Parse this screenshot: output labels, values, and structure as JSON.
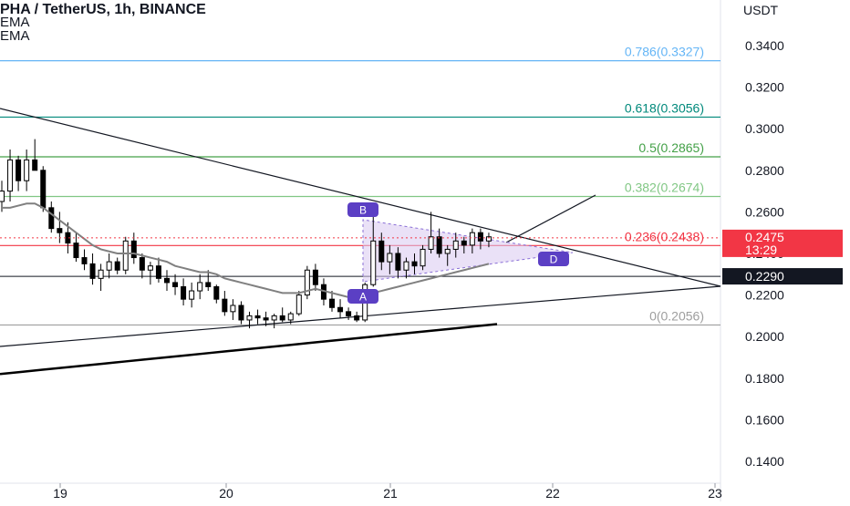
{
  "header": {
    "title": "PHA / TetherUS, 1h, BINANCE",
    "indicator_1": "EMA",
    "indicator_2": "EMA"
  },
  "price_axis": {
    "currency": "USDT",
    "ticks": [
      "0.3400",
      "0.3200",
      "0.3000",
      "0.2800",
      "0.2600",
      "0.2400",
      "0.2200",
      "0.2000",
      "0.1800",
      "0.1600",
      "0.1400"
    ]
  },
  "time_axis": {
    "ticks": [
      "19",
      "20",
      "21",
      "22",
      "23"
    ]
  },
  "fib_levels": [
    {
      "label": "0.786(0.3327)",
      "price": 0.3327,
      "color": "#64b5f6"
    },
    {
      "label": "0.618(0.3056)",
      "price": 0.3056,
      "color": "#00897b"
    },
    {
      "label": "0.5(0.2865)",
      "price": 0.2865,
      "color": "#43a047"
    },
    {
      "label": "0.382(0.2674)",
      "price": 0.2674,
      "color": "#81c784"
    },
    {
      "label": "0.236(0.2438)",
      "price": 0.2438,
      "color": "#f23645"
    },
    {
      "label": "0(0.2056)",
      "price": 0.2056,
      "color": "#9e9e9e"
    }
  ],
  "current_price": {
    "value": "0.2475",
    "countdown": "13:29",
    "color": "#f23645"
  },
  "support_price": {
    "value": "0.2290",
    "color": "#131722"
  },
  "pattern_points": {
    "A": "A",
    "B": "B",
    "D": "D"
  },
  "colors": {
    "pattern_fill": "#d8c8f0",
    "pattern_label": "#5b3fc4",
    "ema_fast": "#808080",
    "ema_slow": "#000000"
  },
  "chart_data": {
    "type": "candlestick",
    "title": "PHA / TetherUS, 1h, BINANCE",
    "ylim": [
      0.13,
      0.355
    ],
    "x_ticks": [
      "19",
      "20",
      "21",
      "22",
      "23"
    ],
    "candles": [
      [
        0.265,
        0.275,
        0.26,
        0.27
      ],
      [
        0.27,
        0.29,
        0.265,
        0.285
      ],
      [
        0.285,
        0.287,
        0.27,
        0.275
      ],
      [
        0.275,
        0.29,
        0.27,
        0.285
      ],
      [
        0.285,
        0.295,
        0.28,
        0.28
      ],
      [
        0.28,
        0.282,
        0.26,
        0.262
      ],
      [
        0.262,
        0.265,
        0.25,
        0.252
      ],
      [
        0.252,
        0.26,
        0.245,
        0.25
      ],
      [
        0.25,
        0.255,
        0.24,
        0.245
      ],
      [
        0.245,
        0.25,
        0.236,
        0.238
      ],
      [
        0.238,
        0.242,
        0.232,
        0.235
      ],
      [
        0.235,
        0.24,
        0.225,
        0.228
      ],
      [
        0.228,
        0.235,
        0.222,
        0.232
      ],
      [
        0.232,
        0.24,
        0.228,
        0.236
      ],
      [
        0.236,
        0.238,
        0.23,
        0.232
      ],
      [
        0.232,
        0.248,
        0.23,
        0.246
      ],
      [
        0.246,
        0.25,
        0.235,
        0.238
      ],
      [
        0.238,
        0.24,
        0.228,
        0.232
      ],
      [
        0.232,
        0.236,
        0.225,
        0.234
      ],
      [
        0.234,
        0.238,
        0.226,
        0.228
      ],
      [
        0.228,
        0.232,
        0.222,
        0.226
      ],
      [
        0.226,
        0.23,
        0.22,
        0.224
      ],
      [
        0.224,
        0.228,
        0.215,
        0.218
      ],
      [
        0.218,
        0.226,
        0.214,
        0.222
      ],
      [
        0.222,
        0.23,
        0.218,
        0.226
      ],
      [
        0.226,
        0.232,
        0.222,
        0.224
      ],
      [
        0.224,
        0.225,
        0.216,
        0.218
      ],
      [
        0.218,
        0.222,
        0.21,
        0.212
      ],
      [
        0.212,
        0.218,
        0.208,
        0.215
      ],
      [
        0.215,
        0.217,
        0.206,
        0.208
      ],
      [
        0.208,
        0.212,
        0.204,
        0.21
      ],
      [
        0.21,
        0.213,
        0.206,
        0.209
      ],
      [
        0.209,
        0.212,
        0.205,
        0.208
      ],
      [
        0.208,
        0.211,
        0.204,
        0.21
      ],
      [
        0.21,
        0.214,
        0.207,
        0.208
      ],
      [
        0.208,
        0.212,
        0.206,
        0.211
      ],
      [
        0.211,
        0.222,
        0.21,
        0.22
      ],
      [
        0.22,
        0.234,
        0.218,
        0.232
      ],
      [
        0.232,
        0.235,
        0.222,
        0.225
      ],
      [
        0.225,
        0.228,
        0.215,
        0.218
      ],
      [
        0.218,
        0.222,
        0.212,
        0.214
      ],
      [
        0.214,
        0.218,
        0.209,
        0.212
      ],
      [
        0.212,
        0.214,
        0.208,
        0.21
      ],
      [
        0.21,
        0.212,
        0.207,
        0.208
      ],
      [
        0.208,
        0.226,
        0.207,
        0.225
      ],
      [
        0.225,
        0.258,
        0.224,
        0.246
      ],
      [
        0.246,
        0.25,
        0.232,
        0.236
      ],
      [
        0.236,
        0.244,
        0.23,
        0.24
      ],
      [
        0.24,
        0.243,
        0.228,
        0.232
      ],
      [
        0.232,
        0.238,
        0.228,
        0.236
      ],
      [
        0.236,
        0.24,
        0.23,
        0.234
      ],
      [
        0.234,
        0.244,
        0.232,
        0.242
      ],
      [
        0.242,
        0.26,
        0.24,
        0.248
      ],
      [
        0.248,
        0.252,
        0.238,
        0.24
      ],
      [
        0.24,
        0.244,
        0.234,
        0.242
      ],
      [
        0.242,
        0.25,
        0.238,
        0.246
      ],
      [
        0.246,
        0.248,
        0.24,
        0.244
      ],
      [
        0.244,
        0.252,
        0.24,
        0.25
      ],
      [
        0.25,
        0.252,
        0.242,
        0.246
      ],
      [
        0.246,
        0.25,
        0.243,
        0.248
      ]
    ],
    "ema_fast": [
      0.262,
      0.262,
      0.263,
      0.264,
      0.264,
      0.262,
      0.259,
      0.256,
      0.253,
      0.25,
      0.247,
      0.244,
      0.242,
      0.241,
      0.24,
      0.24,
      0.24,
      0.239,
      0.238,
      0.237,
      0.236,
      0.234,
      0.233,
      0.232,
      0.231,
      0.231,
      0.23,
      0.228,
      0.227,
      0.226,
      0.225,
      0.224,
      0.223,
      0.222,
      0.221,
      0.221,
      0.221,
      0.222,
      0.223,
      0.222,
      0.221,
      0.22,
      0.219,
      0.218,
      0.219,
      0.221,
      0.222,
      0.223,
      0.224,
      0.225,
      0.226,
      0.227,
      0.228,
      0.229,
      0.23,
      0.231,
      0.232,
      0.233,
      0.234,
      0.235
    ],
    "ema_slow": [
      0.182,
      0.183,
      0.184,
      0.185,
      0.186,
      0.187,
      0.188,
      0.189,
      0.19,
      0.191,
      0.192,
      0.193,
      0.194,
      0.195,
      0.196,
      0.197,
      0.198,
      0.199,
      0.2,
      0.201,
      0.202,
      0.203,
      0.204,
      0.205,
      0.206
    ]
  }
}
